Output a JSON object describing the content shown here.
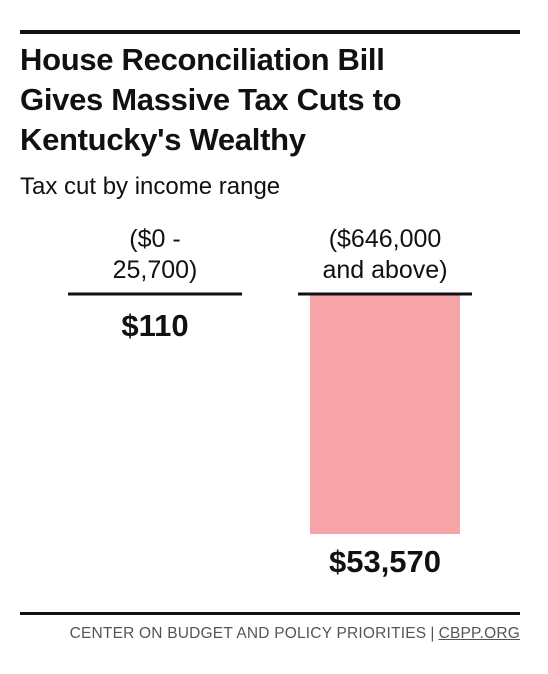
{
  "header": {
    "title": "House Reconciliation Bill\nGives Massive Tax Cuts to\nKentucky's Wealthy",
    "subtitle": "Tax cut by income range"
  },
  "chart_data": {
    "type": "bar",
    "title": "House Reconciliation Bill Gives Massive Tax Cuts to Kentucky's Wealthy",
    "subtitle": "Tax cut by income range",
    "categories": [
      [
        "($0 -",
        "25,700)"
      ],
      [
        "($646,000",
        "and above)"
      ]
    ],
    "values": [
      110,
      53570
    ],
    "value_labels": [
      "$110",
      "$53,570"
    ],
    "ylim": [
      0,
      53570
    ],
    "grid": false,
    "bar_color": "#f7a4a8",
    "baseline_color": "#111111"
  },
  "footer": {
    "org": "CENTER ON BUDGET AND POLICY PRIORITIES",
    "separator": "|",
    "site": "CBPP.ORG"
  }
}
